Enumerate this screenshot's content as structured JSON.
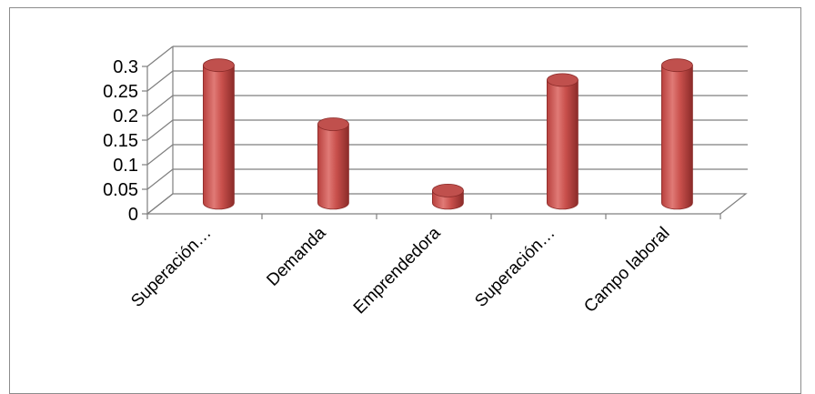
{
  "chart_data": {
    "type": "bar",
    "style": "3d-cylinder",
    "categories": [
      "Superación…",
      "Demanda",
      "Emprendedora",
      "Superación…",
      "Campo laboral"
    ],
    "values": [
      0.28,
      0.16,
      0.025,
      0.25,
      0.28
    ],
    "yticks": [
      "0",
      "0.05",
      "0.1",
      "0.15",
      "0.2",
      "0.25",
      "0.3"
    ],
    "ylim": [
      0,
      0.3
    ],
    "grid": true,
    "legend": "none",
    "colors": {
      "bar": "#c0504d",
      "bar_light": "#e58b88",
      "bar_dark": "#8b2b29",
      "grid": "#7f7f7f"
    }
  }
}
